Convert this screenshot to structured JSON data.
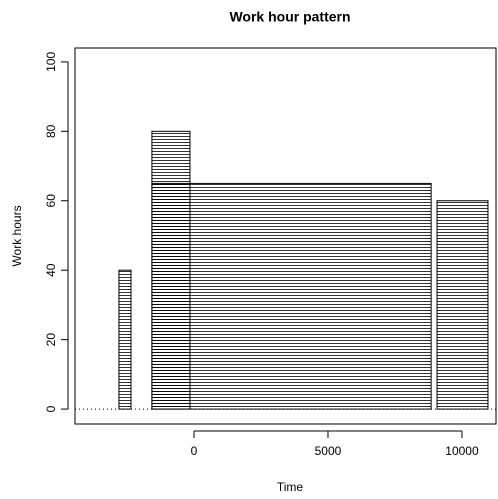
{
  "chart_data": {
    "type": "rect",
    "title": "Work hour pattern",
    "xlabel": "Time",
    "ylabel": "Work hours",
    "x0": [
      -2800,
      -1570,
      -1570,
      9070
    ],
    "x1": [
      -2350,
      -150,
      8850,
      10970
    ],
    "values": [
      40,
      80,
      65,
      60
    ],
    "color": "#000000",
    "hline": 0,
    "xlim": [
      -4440,
      11270
    ],
    "ylim": [
      -4.3,
      104
    ],
    "xticks": [
      0,
      5000,
      10000
    ],
    "yticks": [
      0,
      20,
      40,
      60,
      80,
      100
    ]
  }
}
